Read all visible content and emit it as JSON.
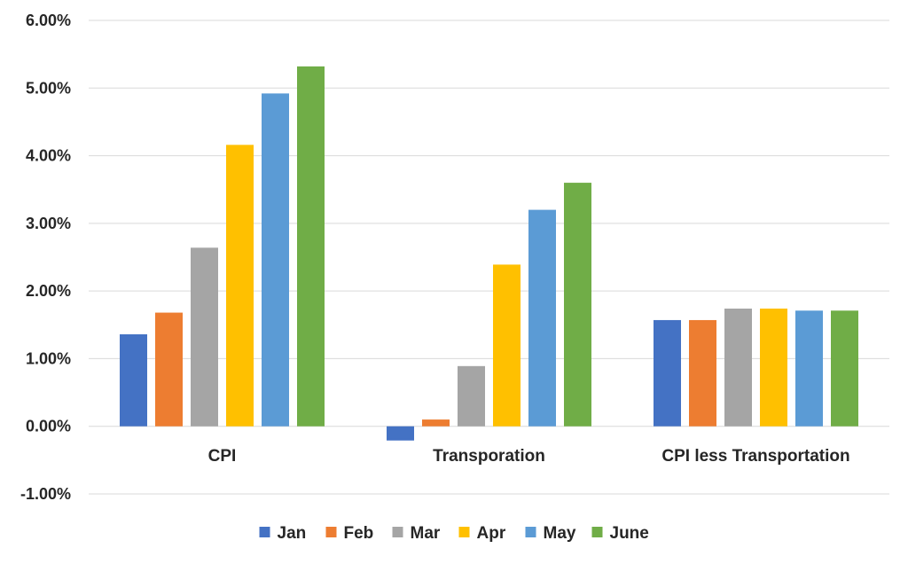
{
  "chart_data": {
    "type": "bar",
    "categories": [
      "CPI",
      "Transporation",
      "CPI less Transportation"
    ],
    "series": [
      {
        "name": "Jan",
        "color": "#4472c4",
        "values": [
          0.0136,
          -0.0021,
          0.0157
        ]
      },
      {
        "name": "Feb",
        "color": "#ed7d31",
        "values": [
          0.0168,
          0.001,
          0.0157
        ]
      },
      {
        "name": "Mar",
        "color": "#a5a5a5",
        "values": [
          0.0264,
          0.0089,
          0.0174
        ]
      },
      {
        "name": "Apr",
        "color": "#ffc000",
        "values": [
          0.0416,
          0.0239,
          0.0174
        ]
      },
      {
        "name": "May",
        "color": "#5b9bd5",
        "values": [
          0.0492,
          0.032,
          0.0171
        ]
      },
      {
        "name": "June",
        "color": "#70ad47",
        "values": [
          0.0532,
          0.036,
          0.0171
        ]
      }
    ],
    "y_ticks": [
      "6.00%",
      "5.00%",
      "4.00%",
      "3.00%",
      "2.00%",
      "1.00%",
      "0.00%",
      "-1.00%"
    ],
    "ylim": [
      -0.01,
      0.06
    ],
    "grid": true,
    "legend_position": "bottom",
    "title": "",
    "xlabel": "",
    "ylabel": ""
  }
}
